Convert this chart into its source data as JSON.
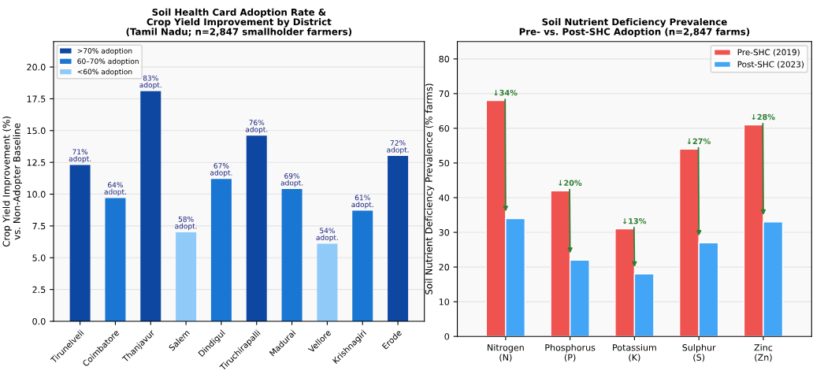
{
  "chart_data": [
    {
      "type": "bar",
      "title": "Soil Health Card Adoption Rate &\nCrop Yield Improvement by District\n(Tamil Nadu; n=2,847 smallholder farmers)",
      "ylabel": "Crop Yield Improvement (%)\nvs. Non-Adopter Baseline",
      "categories": [
        "Tirunelveli",
        "Coimbatore",
        "Thanjavur",
        "Salem",
        "Dindigul",
        "Tiruchirapalli",
        "Madurai",
        "Vellore",
        "Krishnagiri",
        "Erode"
      ],
      "stacked": true,
      "series": [
        {
          "name": ">70% adoption",
          "color": "#0d47a1",
          "values": [
            12.3,
            null,
            18.1,
            null,
            null,
            14.6,
            null,
            null,
            null,
            13.0
          ]
        },
        {
          "name": "60–70% adoption",
          "color": "#1976d2",
          "values": [
            null,
            9.7,
            null,
            null,
            11.2,
            null,
            10.4,
            null,
            8.7,
            null
          ]
        },
        {
          "name": "<60% adoption",
          "color": "#90caf9",
          "values": [
            null,
            null,
            null,
            7.0,
            null,
            null,
            null,
            6.1,
            null,
            null
          ]
        }
      ],
      "annotations": [
        {
          "text": "71%\nadopt.",
          "x": "Tirunelveli",
          "y": 12.3
        },
        {
          "text": "64%\nadopt.",
          "x": "Coimbatore",
          "y": 9.7
        },
        {
          "text": "83%\nadopt.",
          "x": "Thanjavur",
          "y": 18.1
        },
        {
          "text": "58%\nadopt.",
          "x": "Salem",
          "y": 7.0
        },
        {
          "text": "67%\nadopt.",
          "x": "Dindigul",
          "y": 11.2
        },
        {
          "text": "76%\nadopt.",
          "x": "Tiruchirapalli",
          "y": 14.6
        },
        {
          "text": "69%\nadopt.",
          "x": "Madurai",
          "y": 10.4
        },
        {
          "text": "54%\nadopt.",
          "x": "Vellore",
          "y": 6.1
        },
        {
          "text": "61%\nadopt.",
          "x": "Krishnagiri",
          "y": 8.7
        },
        {
          "text": "72%\nadopt.",
          "x": "Erode",
          "y": 13.0
        }
      ],
      "ylim": [
        0,
        22
      ],
      "yticks": [
        {
          "value": 0,
          "label": "0.0"
        },
        {
          "value": 2.5,
          "label": "2.5"
        },
        {
          "value": 5,
          "label": "5.0"
        },
        {
          "value": 7.5,
          "label": "7.5"
        },
        {
          "value": 10,
          "label": "10.0"
        },
        {
          "value": 12.5,
          "label": "12.5"
        },
        {
          "value": 15,
          "label": "15.0"
        },
        {
          "value": 17.5,
          "label": "17.5"
        },
        {
          "value": 20,
          "label": "20.0"
        }
      ],
      "grid": "y",
      "legend": "top left"
    },
    {
      "type": "bar",
      "title": "Soil Nutrient Deficiency Prevalence\nPre- vs. Post-SHC Adoption (n=2,847 farms)",
      "ylabel": "Soil Nutrient Deficiency Prevalence (% farms)",
      "categories": [
        "Nitrogen\n(N)",
        "Phosphorus\n(P)",
        "Potassium\n(K)",
        "Sulphur\n(S)",
        "Zinc\n(Zn)"
      ],
      "series": [
        {
          "name": "Pre-SHC (2019)",
          "color": "#ef5350",
          "values": [
            68,
            42,
            31,
            54,
            61
          ]
        },
        {
          "name": "Post-SHC (2023)",
          "color": "#42a5f5",
          "values": [
            34,
            22,
            18,
            27,
            33
          ]
        }
      ],
      "annotations": [
        {
          "text": "↓34%",
          "x": "Nitrogen\n(N)",
          "y": 36
        },
        {
          "text": "↓20%",
          "x": "Phosphorus\n(P)",
          "y": 24
        },
        {
          "text": "↓13%",
          "x": "Potassium\n(K)",
          "y": 20
        },
        {
          "text": "↓27%",
          "x": "Sulphur\n(S)",
          "y": 29
        },
        {
          "text": "↓28%",
          "x": "Zinc\n(Zn)",
          "y": 35
        }
      ],
      "ylim": [
        0,
        85
      ],
      "yticks": [
        0,
        10,
        20,
        30,
        40,
        50,
        60,
        70,
        80
      ],
      "grid": "y",
      "legend": "top right"
    }
  ]
}
